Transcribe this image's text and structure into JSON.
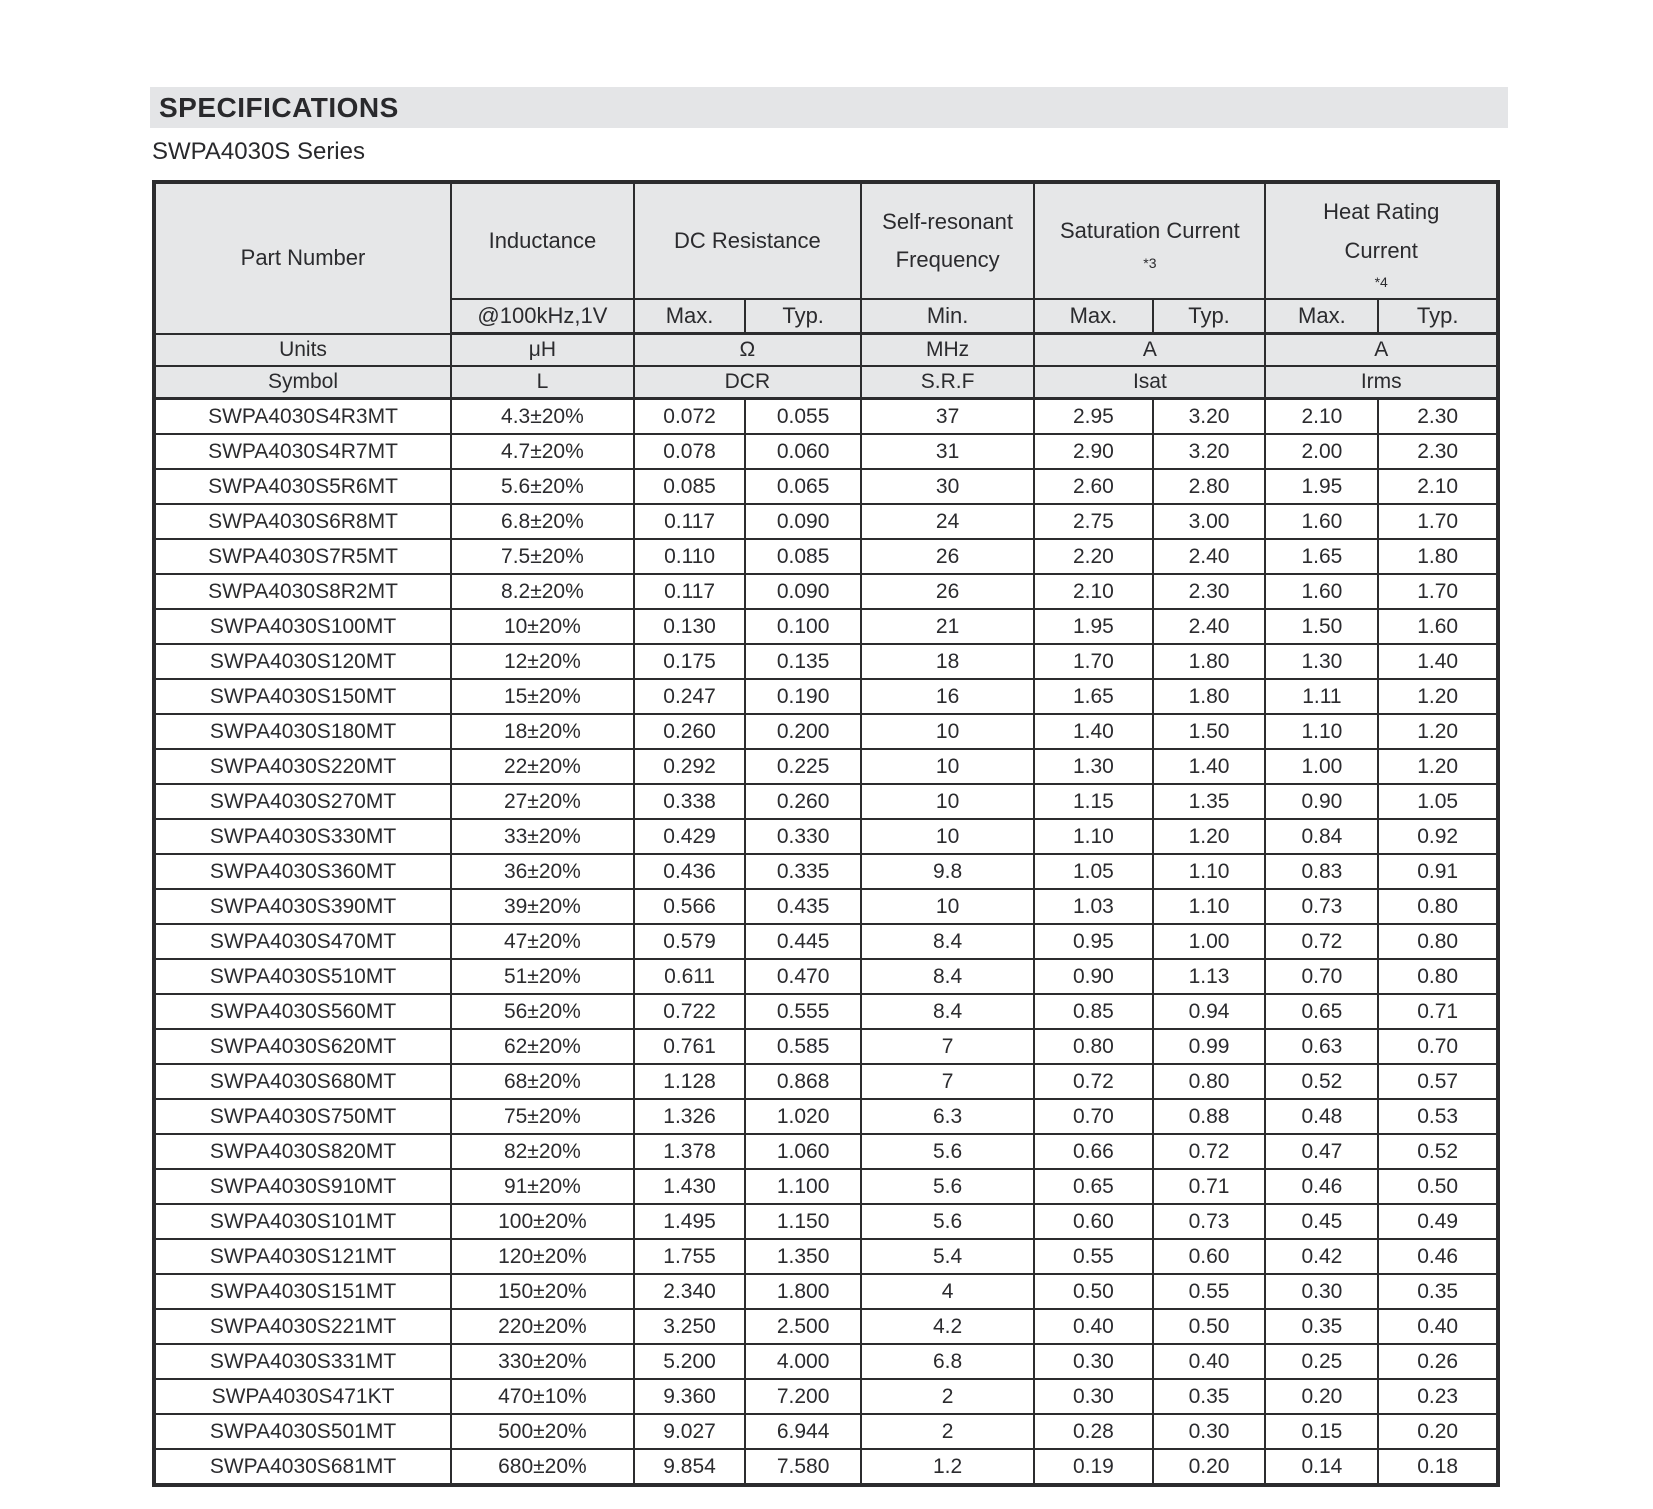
{
  "page": {
    "title": "SPECIFICATIONS",
    "series": "SWPA4030S Series"
  },
  "table": {
    "header": {
      "part_number": "Part Number",
      "inductance": "Inductance",
      "inductance_condition": "@100kHz,1V",
      "dc_resistance": "DC Resistance",
      "self_resonant_line1": "Self-resonant",
      "self_resonant_line2": "Frequency",
      "saturation_current": "Saturation Current",
      "saturation_note": "*3",
      "heat_rating_line1": "Heat Rating",
      "heat_rating_line2": "Current",
      "heat_note": "*4",
      "max_label": "Max.",
      "typ_label": "Typ.",
      "min_label": "Min."
    },
    "units_row": {
      "label": "Units",
      "inductance": "μH",
      "dcr": "Ω",
      "srf": "MHz",
      "isat": "A",
      "irms": "A"
    },
    "symbol_row": {
      "label": "Symbol",
      "inductance": "L",
      "dcr": "DCR",
      "srf": "S.R.F",
      "isat": "Isat",
      "irms": "Irms"
    },
    "row_cell_names": [
      "part-number-cell",
      "inductance-cell",
      "dcr-max-cell",
      "dcr-typ-cell",
      "srf-min-cell",
      "isat-max-cell",
      "isat-typ-cell",
      "irms-max-cell",
      "irms-typ-cell"
    ],
    "rows": [
      [
        "SWPA4030S4R3MT",
        "4.3±20%",
        "0.072",
        "0.055",
        "37",
        "2.95",
        "3.20",
        "2.10",
        "2.30"
      ],
      [
        "SWPA4030S4R7MT",
        "4.7±20%",
        "0.078",
        "0.060",
        "31",
        "2.90",
        "3.20",
        "2.00",
        "2.30"
      ],
      [
        "SWPA4030S5R6MT",
        "5.6±20%",
        "0.085",
        "0.065",
        "30",
        "2.60",
        "2.80",
        "1.95",
        "2.10"
      ],
      [
        "SWPA4030S6R8MT",
        "6.8±20%",
        "0.117",
        "0.090",
        "24",
        "2.75",
        "3.00",
        "1.60",
        "1.70"
      ],
      [
        "SWPA4030S7R5MT",
        "7.5±20%",
        "0.110",
        "0.085",
        "26",
        "2.20",
        "2.40",
        "1.65",
        "1.80"
      ],
      [
        "SWPA4030S8R2MT",
        "8.2±20%",
        "0.117",
        "0.090",
        "26",
        "2.10",
        "2.30",
        "1.60",
        "1.70"
      ],
      [
        "SWPA4030S100MT",
        "10±20%",
        "0.130",
        "0.100",
        "21",
        "1.95",
        "2.40",
        "1.50",
        "1.60"
      ],
      [
        "SWPA4030S120MT",
        "12±20%",
        "0.175",
        "0.135",
        "18",
        "1.70",
        "1.80",
        "1.30",
        "1.40"
      ],
      [
        "SWPA4030S150MT",
        "15±20%",
        "0.247",
        "0.190",
        "16",
        "1.65",
        "1.80",
        "1.11",
        "1.20"
      ],
      [
        "SWPA4030S180MT",
        "18±20%",
        "0.260",
        "0.200",
        "10",
        "1.40",
        "1.50",
        "1.10",
        "1.20"
      ],
      [
        "SWPA4030S220MT",
        "22±20%",
        "0.292",
        "0.225",
        "10",
        "1.30",
        "1.40",
        "1.00",
        "1.20"
      ],
      [
        "SWPA4030S270MT",
        "27±20%",
        "0.338",
        "0.260",
        "10",
        "1.15",
        "1.35",
        "0.90",
        "1.05"
      ],
      [
        "SWPA4030S330MT",
        "33±20%",
        "0.429",
        "0.330",
        "10",
        "1.10",
        "1.20",
        "0.84",
        "0.92"
      ],
      [
        "SWPA4030S360MT",
        "36±20%",
        "0.436",
        "0.335",
        "9.8",
        "1.05",
        "1.10",
        "0.83",
        "0.91"
      ],
      [
        "SWPA4030S390MT",
        "39±20%",
        "0.566",
        "0.435",
        "10",
        "1.03",
        "1.10",
        "0.73",
        "0.80"
      ],
      [
        "SWPA4030S470MT",
        "47±20%",
        "0.579",
        "0.445",
        "8.4",
        "0.95",
        "1.00",
        "0.72",
        "0.80"
      ],
      [
        "SWPA4030S510MT",
        "51±20%",
        "0.611",
        "0.470",
        "8.4",
        "0.90",
        "1.13",
        "0.70",
        "0.80"
      ],
      [
        "SWPA4030S560MT",
        "56±20%",
        "0.722",
        "0.555",
        "8.4",
        "0.85",
        "0.94",
        "0.65",
        "0.71"
      ],
      [
        "SWPA4030S620MT",
        "62±20%",
        "0.761",
        "0.585",
        "7",
        "0.80",
        "0.99",
        "0.63",
        "0.70"
      ],
      [
        "SWPA4030S680MT",
        "68±20%",
        "1.128",
        "0.868",
        "7",
        "0.72",
        "0.80",
        "0.52",
        "0.57"
      ],
      [
        "SWPA4030S750MT",
        "75±20%",
        "1.326",
        "1.020",
        "6.3",
        "0.70",
        "0.88",
        "0.48",
        "0.53"
      ],
      [
        "SWPA4030S820MT",
        "82±20%",
        "1.378",
        "1.060",
        "5.6",
        "0.66",
        "0.72",
        "0.47",
        "0.52"
      ],
      [
        "SWPA4030S910MT",
        "91±20%",
        "1.430",
        "1.100",
        "5.6",
        "0.65",
        "0.71",
        "0.46",
        "0.50"
      ],
      [
        "SWPA4030S101MT",
        "100±20%",
        "1.495",
        "1.150",
        "5.6",
        "0.60",
        "0.73",
        "0.45",
        "0.49"
      ],
      [
        "SWPA4030S121MT",
        "120±20%",
        "1.755",
        "1.350",
        "5.4",
        "0.55",
        "0.60",
        "0.42",
        "0.46"
      ],
      [
        "SWPA4030S151MT",
        "150±20%",
        "2.340",
        "1.800",
        "4",
        "0.50",
        "0.55",
        "0.30",
        "0.35"
      ],
      [
        "SWPA4030S221MT",
        "220±20%",
        "3.250",
        "2.500",
        "4.2",
        "0.40",
        "0.50",
        "0.35",
        "0.40"
      ],
      [
        "SWPA4030S331MT",
        "330±20%",
        "5.200",
        "4.000",
        "6.8",
        "0.30",
        "0.40",
        "0.25",
        "0.26"
      ],
      [
        "SWPA4030S471KT",
        "470±10%",
        "9.360",
        "7.200",
        "2",
        "0.30",
        "0.35",
        "0.20",
        "0.23"
      ],
      [
        "SWPA4030S501MT",
        "500±20%",
        "9.027",
        "6.944",
        "2",
        "0.28",
        "0.30",
        "0.15",
        "0.20"
      ],
      [
        "SWPA4030S681MT",
        "680±20%",
        "9.854",
        "7.580",
        "1.2",
        "0.19",
        "0.20",
        "0.14",
        "0.18"
      ]
    ]
  }
}
